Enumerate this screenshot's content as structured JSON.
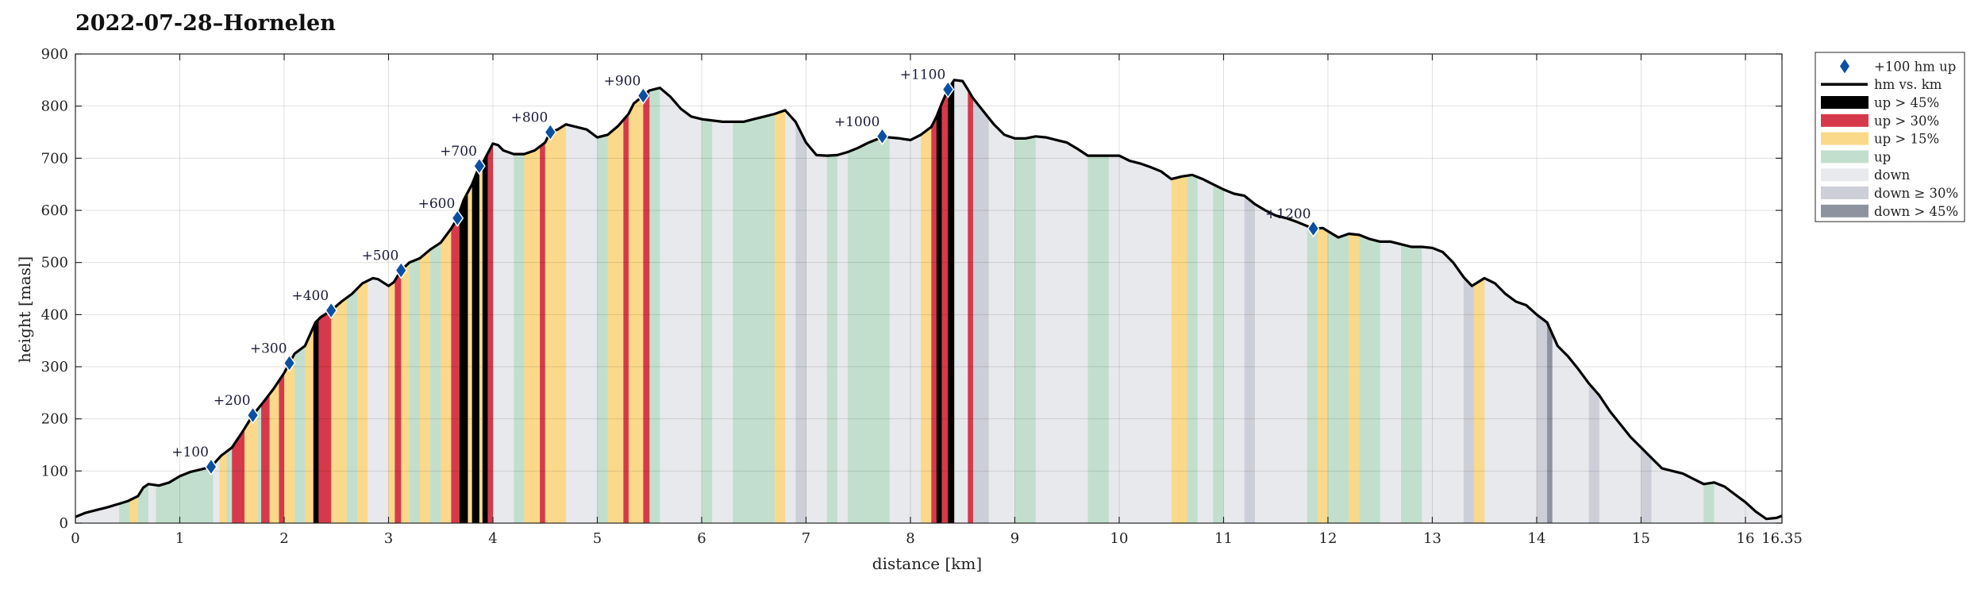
{
  "chart_data": {
    "type": "area",
    "title": "2022-07-28–Hornelen",
    "xlabel": "distance [km]",
    "ylabel": "height [masl]",
    "xlim": [
      0,
      16.35
    ],
    "ylim": [
      0,
      900
    ],
    "x_ticks": [
      0,
      1,
      2,
      3,
      4,
      5,
      6,
      7,
      8,
      9,
      10,
      11,
      12,
      13,
      14,
      15,
      16,
      16.35
    ],
    "x_tick_labels": [
      "0",
      "1",
      "2",
      "3",
      "4",
      "5",
      "6",
      "7",
      "8",
      "9",
      "10",
      "11",
      "12",
      "13",
      "14",
      "15",
      "16",
      "16.35"
    ],
    "y_ticks": [
      0,
      100,
      200,
      300,
      400,
      500,
      600,
      700,
      800,
      900
    ],
    "y_tick_labels": [
      "0",
      "100",
      "200",
      "300",
      "400",
      "500",
      "600",
      "700",
      "800",
      "900"
    ],
    "grid": true,
    "legend_position": "outside-top-right",
    "legend": [
      {
        "key": "marker",
        "label": "+100 hm up",
        "color": "#0b4fa3"
      },
      {
        "key": "line",
        "label": "hm vs. km",
        "color": "#000000"
      },
      {
        "key": "up45",
        "label": "up > 45%",
        "color": "#000000"
      },
      {
        "key": "up30",
        "label": "up > 30%",
        "color": "#d63a4a"
      },
      {
        "key": "up15",
        "label": "up > 15%",
        "color": "#fbd98a"
      },
      {
        "key": "up",
        "label": "up",
        "color": "#c2dfcd"
      },
      {
        "key": "down",
        "label": "down",
        "color": "#e8e9ec"
      },
      {
        "key": "down30",
        "label": "down ≥ 30%",
        "color": "#cdcfd8"
      },
      {
        "key": "down45",
        "label": "down > 45%",
        "color": "#8e93a0"
      }
    ],
    "profile": [
      [
        0,
        12
      ],
      [
        0.1,
        20
      ],
      [
        0.2,
        25
      ],
      [
        0.3,
        30
      ],
      [
        0.4,
        36
      ],
      [
        0.5,
        42
      ],
      [
        0.6,
        52
      ],
      [
        0.65,
        68
      ],
      [
        0.7,
        75
      ],
      [
        0.8,
        72
      ],
      [
        0.9,
        78
      ],
      [
        1.0,
        90
      ],
      [
        1.1,
        98
      ],
      [
        1.2,
        103
      ],
      [
        1.3,
        108
      ],
      [
        1.4,
        130
      ],
      [
        1.5,
        145
      ],
      [
        1.6,
        175
      ],
      [
        1.7,
        207
      ],
      [
        1.8,
        232
      ],
      [
        1.9,
        258
      ],
      [
        2.0,
        288
      ],
      [
        2.05,
        307
      ],
      [
        2.1,
        325
      ],
      [
        2.2,
        340
      ],
      [
        2.3,
        385
      ],
      [
        2.35,
        395
      ],
      [
        2.45,
        408
      ],
      [
        2.55,
        425
      ],
      [
        2.65,
        440
      ],
      [
        2.75,
        460
      ],
      [
        2.85,
        470
      ],
      [
        2.9,
        468
      ],
      [
        3.0,
        455
      ],
      [
        3.05,
        462
      ],
      [
        3.12,
        485
      ],
      [
        3.2,
        500
      ],
      [
        3.3,
        508
      ],
      [
        3.4,
        525
      ],
      [
        3.5,
        538
      ],
      [
        3.6,
        565
      ],
      [
        3.66,
        585
      ],
      [
        3.72,
        620
      ],
      [
        3.8,
        650
      ],
      [
        3.87,
        685
      ],
      [
        3.9,
        690
      ],
      [
        4.0,
        728
      ],
      [
        4.05,
        725
      ],
      [
        4.1,
        715
      ],
      [
        4.2,
        708
      ],
      [
        4.3,
        708
      ],
      [
        4.4,
        715
      ],
      [
        4.5,
        730
      ],
      [
        4.55,
        750
      ],
      [
        4.62,
        755
      ],
      [
        4.7,
        765
      ],
      [
        4.8,
        760
      ],
      [
        4.9,
        755
      ],
      [
        5.0,
        740
      ],
      [
        5.1,
        745
      ],
      [
        5.2,
        762
      ],
      [
        5.3,
        785
      ],
      [
        5.35,
        805
      ],
      [
        5.44,
        820
      ],
      [
        5.5,
        830
      ],
      [
        5.6,
        835
      ],
      [
        5.7,
        818
      ],
      [
        5.8,
        795
      ],
      [
        5.9,
        780
      ],
      [
        6.0,
        775
      ],
      [
        6.2,
        770
      ],
      [
        6.4,
        770
      ],
      [
        6.5,
        775
      ],
      [
        6.6,
        780
      ],
      [
        6.7,
        785
      ],
      [
        6.8,
        792
      ],
      [
        6.9,
        770
      ],
      [
        7.0,
        730
      ],
      [
        7.1,
        706
      ],
      [
        7.2,
        705
      ],
      [
        7.3,
        706
      ],
      [
        7.4,
        712
      ],
      [
        7.5,
        720
      ],
      [
        7.6,
        730
      ],
      [
        7.7,
        738
      ],
      [
        7.73,
        742
      ],
      [
        7.8,
        740
      ],
      [
        7.9,
        738
      ],
      [
        8.0,
        735
      ],
      [
        8.1,
        745
      ],
      [
        8.2,
        760
      ],
      [
        8.25,
        780
      ],
      [
        8.3,
        805
      ],
      [
        8.36,
        832
      ],
      [
        8.42,
        850
      ],
      [
        8.5,
        848
      ],
      [
        8.55,
        832
      ],
      [
        8.6,
        815
      ],
      [
        8.7,
        790
      ],
      [
        8.8,
        765
      ],
      [
        8.9,
        745
      ],
      [
        9.0,
        738
      ],
      [
        9.1,
        738
      ],
      [
        9.2,
        742
      ],
      [
        9.3,
        740
      ],
      [
        9.4,
        735
      ],
      [
        9.5,
        730
      ],
      [
        9.6,
        718
      ],
      [
        9.7,
        705
      ],
      [
        9.9,
        705
      ],
      [
        10.0,
        705
      ],
      [
        10.1,
        695
      ],
      [
        10.2,
        690
      ],
      [
        10.3,
        683
      ],
      [
        10.4,
        675
      ],
      [
        10.5,
        660
      ],
      [
        10.6,
        665
      ],
      [
        10.7,
        668
      ],
      [
        10.8,
        660
      ],
      [
        10.9,
        650
      ],
      [
        11.0,
        640
      ],
      [
        11.1,
        632
      ],
      [
        11.2,
        628
      ],
      [
        11.3,
        612
      ],
      [
        11.4,
        600
      ],
      [
        11.5,
        590
      ],
      [
        11.6,
        585
      ],
      [
        11.7,
        578
      ],
      [
        11.86,
        565
      ],
      [
        11.95,
        566
      ],
      [
        12.0,
        560
      ],
      [
        12.1,
        548
      ],
      [
        12.2,
        555
      ],
      [
        12.3,
        553
      ],
      [
        12.4,
        545
      ],
      [
        12.5,
        540
      ],
      [
        12.6,
        540
      ],
      [
        12.7,
        535
      ],
      [
        12.8,
        530
      ],
      [
        12.9,
        530
      ],
      [
        13.0,
        528
      ],
      [
        13.1,
        520
      ],
      [
        13.2,
        500
      ],
      [
        13.3,
        472
      ],
      [
        13.38,
        455
      ],
      [
        13.5,
        470
      ],
      [
        13.6,
        460
      ],
      [
        13.7,
        440
      ],
      [
        13.8,
        425
      ],
      [
        13.9,
        418
      ],
      [
        14.0,
        400
      ],
      [
        14.1,
        385
      ],
      [
        14.2,
        340
      ],
      [
        14.3,
        320
      ],
      [
        14.4,
        295
      ],
      [
        14.5,
        268
      ],
      [
        14.6,
        245
      ],
      [
        14.7,
        215
      ],
      [
        14.8,
        190
      ],
      [
        14.9,
        165
      ],
      [
        15.0,
        145
      ],
      [
        15.1,
        125
      ],
      [
        15.2,
        105
      ],
      [
        15.3,
        100
      ],
      [
        15.4,
        95
      ],
      [
        15.5,
        85
      ],
      [
        15.6,
        75
      ],
      [
        15.7,
        78
      ],
      [
        15.8,
        70
      ],
      [
        15.9,
        55
      ],
      [
        16.0,
        40
      ],
      [
        16.1,
        22
      ],
      [
        16.2,
        8
      ],
      [
        16.3,
        10
      ],
      [
        16.35,
        14
      ]
    ],
    "markers": [
      {
        "label": "+100",
        "x": 1.3,
        "y": 108
      },
      {
        "label": "+200",
        "x": 1.7,
        "y": 207
      },
      {
        "label": "+300",
        "x": 2.05,
        "y": 307
      },
      {
        "label": "+400",
        "x": 2.45,
        "y": 408
      },
      {
        "label": "+500",
        "x": 3.12,
        "y": 485
      },
      {
        "label": "+600",
        "x": 3.66,
        "y": 585
      },
      {
        "label": "+700",
        "x": 3.87,
        "y": 685
      },
      {
        "label": "+800",
        "x": 4.55,
        "y": 750
      },
      {
        "label": "+900",
        "x": 5.44,
        "y": 820
      },
      {
        "label": "+1000",
        "x": 7.73,
        "y": 742
      },
      {
        "label": "+1100",
        "x": 8.36,
        "y": 832
      },
      {
        "label": "+1200",
        "x": 11.86,
        "y": 565
      }
    ],
    "bands": [
      [
        0.0,
        0.42,
        "down"
      ],
      [
        0.42,
        0.52,
        "up"
      ],
      [
        0.52,
        0.6,
        "up15"
      ],
      [
        0.6,
        0.7,
        "up"
      ],
      [
        0.7,
        0.77,
        "down"
      ],
      [
        0.77,
        1.32,
        "up"
      ],
      [
        1.32,
        1.38,
        "down"
      ],
      [
        1.38,
        1.45,
        "up15"
      ],
      [
        1.45,
        1.5,
        "up"
      ],
      [
        1.5,
        1.62,
        "up30"
      ],
      [
        1.62,
        1.75,
        "up15"
      ],
      [
        1.75,
        1.78,
        "up"
      ],
      [
        1.78,
        1.86,
        "up30"
      ],
      [
        1.86,
        1.95,
        "up15"
      ],
      [
        1.95,
        2.0,
        "up30"
      ],
      [
        2.0,
        2.1,
        "up15"
      ],
      [
        2.1,
        2.2,
        "up"
      ],
      [
        2.2,
        2.28,
        "up15"
      ],
      [
        2.28,
        2.33,
        "up45"
      ],
      [
        2.33,
        2.45,
        "up30"
      ],
      [
        2.45,
        2.6,
        "up15"
      ],
      [
        2.6,
        2.7,
        "up"
      ],
      [
        2.7,
        2.8,
        "up15"
      ],
      [
        2.8,
        3.0,
        "down"
      ],
      [
        3.0,
        3.06,
        "up15"
      ],
      [
        3.06,
        3.12,
        "up30"
      ],
      [
        3.12,
        3.2,
        "up15"
      ],
      [
        3.2,
        3.3,
        "up"
      ],
      [
        3.3,
        3.4,
        "up15"
      ],
      [
        3.4,
        3.5,
        "up"
      ],
      [
        3.5,
        3.6,
        "up15"
      ],
      [
        3.6,
        3.68,
        "up30"
      ],
      [
        3.68,
        3.76,
        "up45"
      ],
      [
        3.76,
        3.8,
        "up15"
      ],
      [
        3.8,
        3.87,
        "up45"
      ],
      [
        3.87,
        3.9,
        "up15"
      ],
      [
        3.9,
        3.95,
        "up45"
      ],
      [
        3.95,
        4.0,
        "up30"
      ],
      [
        4.0,
        4.2,
        "down"
      ],
      [
        4.2,
        4.3,
        "up"
      ],
      [
        4.3,
        4.45,
        "up15"
      ],
      [
        4.45,
        4.5,
        "up30"
      ],
      [
        4.5,
        4.7,
        "up15"
      ],
      [
        4.7,
        5.0,
        "down"
      ],
      [
        5.0,
        5.1,
        "up"
      ],
      [
        5.1,
        5.25,
        "up15"
      ],
      [
        5.25,
        5.3,
        "up30"
      ],
      [
        5.3,
        5.44,
        "up15"
      ],
      [
        5.44,
        5.5,
        "up30"
      ],
      [
        5.5,
        5.6,
        "up"
      ],
      [
        5.6,
        6.0,
        "down"
      ],
      [
        6.0,
        6.1,
        "up"
      ],
      [
        6.1,
        6.3,
        "down"
      ],
      [
        6.3,
        6.4,
        "up"
      ],
      [
        6.4,
        6.55,
        "up"
      ],
      [
        6.55,
        6.7,
        "up"
      ],
      [
        6.7,
        6.8,
        "up15"
      ],
      [
        6.8,
        6.9,
        "down"
      ],
      [
        6.9,
        7.0,
        "down30"
      ],
      [
        7.0,
        7.2,
        "down"
      ],
      [
        7.2,
        7.3,
        "up"
      ],
      [
        7.3,
        7.4,
        "down"
      ],
      [
        7.4,
        7.8,
        "up"
      ],
      [
        7.8,
        8.1,
        "down"
      ],
      [
        8.1,
        8.2,
        "up15"
      ],
      [
        8.2,
        8.25,
        "up30"
      ],
      [
        8.25,
        8.3,
        "up45"
      ],
      [
        8.3,
        8.36,
        "up30"
      ],
      [
        8.36,
        8.42,
        "up45"
      ],
      [
        8.42,
        8.55,
        "down"
      ],
      [
        8.55,
        8.6,
        "up30"
      ],
      [
        8.6,
        8.75,
        "down30"
      ],
      [
        8.75,
        8.9,
        "down"
      ],
      [
        8.9,
        9.0,
        "down"
      ],
      [
        9.0,
        9.1,
        "up"
      ],
      [
        9.1,
        9.2,
        "up"
      ],
      [
        9.2,
        9.7,
        "down"
      ],
      [
        9.7,
        9.9,
        "up"
      ],
      [
        9.9,
        10.5,
        "down"
      ],
      [
        10.5,
        10.65,
        "up15"
      ],
      [
        10.65,
        10.75,
        "up"
      ],
      [
        10.75,
        10.9,
        "down"
      ],
      [
        10.9,
        11.0,
        "up"
      ],
      [
        11.0,
        11.2,
        "down"
      ],
      [
        11.2,
        11.3,
        "down30"
      ],
      [
        11.3,
        11.8,
        "down"
      ],
      [
        11.8,
        11.9,
        "up"
      ],
      [
        11.9,
        12.0,
        "up15"
      ],
      [
        12.0,
        12.2,
        "up"
      ],
      [
        12.2,
        12.3,
        "up15"
      ],
      [
        12.3,
        12.5,
        "up"
      ],
      [
        12.5,
        12.7,
        "down"
      ],
      [
        12.7,
        12.9,
        "up"
      ],
      [
        12.9,
        13.3,
        "down"
      ],
      [
        13.3,
        13.4,
        "down30"
      ],
      [
        13.4,
        13.5,
        "up15"
      ],
      [
        13.5,
        14.0,
        "down"
      ],
      [
        14.0,
        14.1,
        "down30"
      ],
      [
        14.1,
        14.15,
        "down45"
      ],
      [
        14.15,
        14.5,
        "down"
      ],
      [
        14.5,
        14.6,
        "down30"
      ],
      [
        14.6,
        15.0,
        "down"
      ],
      [
        15.0,
        15.1,
        "down30"
      ],
      [
        15.1,
        15.6,
        "down"
      ],
      [
        15.6,
        15.7,
        "up"
      ],
      [
        15.7,
        16.35,
        "down"
      ]
    ]
  }
}
